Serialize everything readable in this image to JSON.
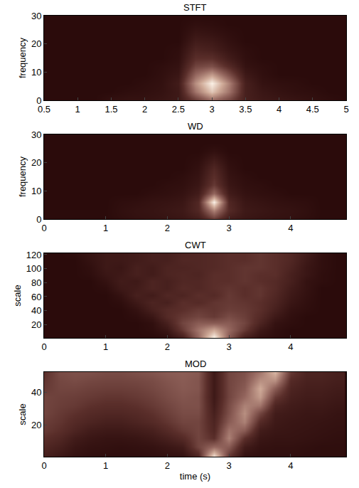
{
  "chart_data": [
    {
      "type": "heatmap",
      "title": "STFT",
      "y_label": "frequency",
      "x": [
        0.5,
        0.75,
        1,
        1.25,
        1.5,
        1.75,
        2,
        2.25,
        2.5,
        2.75,
        3,
        3.25,
        3.5,
        3.75,
        4,
        4.25,
        4.5,
        4.75,
        5
      ],
      "y": [
        0,
        3,
        6,
        9,
        12,
        15,
        18,
        21,
        24,
        27,
        30
      ],
      "z": [
        [
          0,
          0,
          0,
          0,
          0.04,
          0.05,
          0.05,
          0.07,
          0.1,
          0.3,
          0.5,
          0.35,
          0.15,
          0.1,
          0.08,
          0.06,
          0.04,
          0.02,
          0
        ],
        [
          0,
          0,
          0,
          0,
          0,
          0.02,
          0.03,
          0.05,
          0.1,
          0.55,
          0.85,
          0.55,
          0.15,
          0.08,
          0.05,
          0.03,
          0.02,
          0,
          0
        ],
        [
          0,
          0,
          0,
          0,
          0,
          0,
          0.02,
          0.04,
          0.12,
          0.65,
          1,
          0.6,
          0.15,
          0.05,
          0.03,
          0.02,
          0,
          0,
          0
        ],
        [
          0,
          0,
          0,
          0,
          0,
          0,
          0,
          0.03,
          0.08,
          0.5,
          0.7,
          0.4,
          0.1,
          0.03,
          0,
          0,
          0,
          0,
          0
        ],
        [
          0,
          0,
          0,
          0,
          0,
          0,
          0,
          0.02,
          0.05,
          0.35,
          0.4,
          0.22,
          0.05,
          0.02,
          0,
          0,
          0,
          0,
          0
        ],
        [
          0,
          0,
          0,
          0,
          0,
          0,
          0,
          0,
          0.03,
          0.25,
          0.25,
          0.12,
          0.03,
          0,
          0,
          0,
          0,
          0,
          0
        ],
        [
          0,
          0,
          0,
          0,
          0,
          0,
          0,
          0,
          0.02,
          0.18,
          0.15,
          0.07,
          0.02,
          0,
          0,
          0,
          0,
          0,
          0
        ],
        [
          0,
          0,
          0,
          0,
          0,
          0,
          0,
          0,
          0,
          0.12,
          0.1,
          0.04,
          0,
          0,
          0,
          0,
          0,
          0,
          0
        ],
        [
          0,
          0,
          0,
          0,
          0,
          0,
          0,
          0,
          0,
          0.07,
          0.05,
          0.02,
          0,
          0,
          0,
          0,
          0,
          0,
          0
        ],
        [
          0,
          0,
          0,
          0,
          0,
          0,
          0,
          0,
          0,
          0.03,
          0.02,
          0,
          0,
          0,
          0,
          0,
          0,
          0,
          0
        ],
        [
          0,
          0,
          0,
          0,
          0,
          0,
          0,
          0,
          0,
          0,
          0,
          0,
          0,
          0,
          0,
          0,
          0,
          0,
          0
        ]
      ],
      "zlim": [
        0,
        1
      ],
      "xlim": [
        0.5,
        5
      ],
      "xticks": [
        0.5,
        1,
        1.5,
        2,
        2.5,
        3,
        3.5,
        4,
        4.5,
        5
      ],
      "ylim": [
        0,
        30
      ],
      "yticks": [
        0,
        10,
        20,
        30
      ]
    },
    {
      "type": "heatmap",
      "title": "WD",
      "y_label": "frequency",
      "x": [
        0,
        0.25,
        0.5,
        0.75,
        1,
        1.25,
        1.5,
        1.75,
        2,
        2.25,
        2.5,
        2.75,
        3,
        3.25,
        3.5,
        3.75,
        4,
        4.25,
        4.5,
        4.75
      ],
      "y": [
        0,
        3,
        6,
        9,
        12,
        15,
        18,
        21,
        24,
        27,
        30
      ],
      "z": [
        [
          0,
          0,
          0,
          0,
          0,
          0.02,
          0.04,
          0.05,
          0.06,
          0.08,
          0.12,
          0.3,
          0.12,
          0.08,
          0.06,
          0.05,
          0.04,
          0.02,
          0,
          0
        ],
        [
          0,
          0,
          0,
          0,
          0,
          0.03,
          0.05,
          0.06,
          0.08,
          0.1,
          0.2,
          0.6,
          0.22,
          0.1,
          0.08,
          0.06,
          0.05,
          0.03,
          0,
          0
        ],
        [
          0,
          0,
          0,
          0,
          0,
          0.02,
          0.03,
          0.05,
          0.06,
          0.08,
          0.2,
          1,
          0.2,
          0.08,
          0.06,
          0.04,
          0.03,
          0.02,
          0,
          0
        ],
        [
          0,
          0,
          0,
          0,
          0,
          0,
          0,
          0.02,
          0.03,
          0.05,
          0.12,
          0.5,
          0.12,
          0.05,
          0.03,
          0.02,
          0,
          0,
          0,
          0
        ],
        [
          0,
          0,
          0,
          0,
          0,
          0,
          0,
          0,
          0.02,
          0.03,
          0.08,
          0.3,
          0.08,
          0.03,
          0.02,
          0,
          0,
          0,
          0,
          0
        ],
        [
          0,
          0,
          0,
          0,
          0,
          0,
          0,
          0,
          0,
          0.02,
          0.06,
          0.25,
          0.06,
          0.02,
          0,
          0,
          0,
          0,
          0,
          0
        ],
        [
          0,
          0,
          0,
          0,
          0,
          0,
          0,
          0,
          0,
          0,
          0.04,
          0.2,
          0.04,
          0,
          0,
          0,
          0,
          0,
          0,
          0
        ],
        [
          0,
          0,
          0,
          0,
          0,
          0,
          0,
          0,
          0,
          0,
          0.02,
          0.12,
          0.02,
          0,
          0,
          0,
          0,
          0,
          0,
          0
        ],
        [
          0,
          0,
          0,
          0,
          0,
          0,
          0,
          0,
          0,
          0,
          0,
          0.04,
          0,
          0,
          0,
          0,
          0,
          0,
          0,
          0
        ],
        [
          0,
          0,
          0,
          0,
          0,
          0,
          0,
          0,
          0,
          0,
          0,
          0,
          0,
          0,
          0,
          0,
          0,
          0,
          0,
          0
        ],
        [
          0,
          0,
          0,
          0,
          0,
          0,
          0,
          0,
          0,
          0,
          0,
          0,
          0,
          0,
          0,
          0,
          0,
          0,
          0,
          0
        ]
      ],
      "zlim": [
        0,
        1
      ],
      "xlim": [
        0,
        4.9
      ],
      "xticks": [
        0,
        1,
        2,
        3,
        4
      ],
      "ylim": [
        0,
        30
      ],
      "yticks": [
        0,
        10,
        20,
        30
      ]
    },
    {
      "type": "heatmap",
      "title": "CWT",
      "y_label": "scale",
      "x": [
        0,
        0.25,
        0.5,
        0.75,
        1,
        1.25,
        1.5,
        1.75,
        2,
        2.25,
        2.5,
        2.75,
        3,
        3.25,
        3.5,
        3.75,
        4,
        4.25,
        4.5,
        4.75
      ],
      "y": [
        2,
        12,
        22,
        32,
        42,
        52,
        62,
        72,
        82,
        92,
        102,
        112,
        122
      ],
      "z": [
        [
          0,
          0,
          0,
          0,
          0,
          0,
          0,
          0,
          0.02,
          0.15,
          0.5,
          1,
          0.45,
          0.15,
          0.05,
          0.02,
          0,
          0,
          0,
          0
        ],
        [
          0,
          0,
          0,
          0,
          0,
          0,
          0,
          0.02,
          0.08,
          0.3,
          0.55,
          0.75,
          0.5,
          0.3,
          0.1,
          0.03,
          0,
          0,
          0,
          0
        ],
        [
          0,
          0,
          0,
          0,
          0,
          0,
          0,
          0.03,
          0.15,
          0.35,
          0.45,
          0.45,
          0.45,
          0.35,
          0.18,
          0.05,
          0.02,
          0,
          0,
          0
        ],
        [
          0,
          0,
          0,
          0,
          0,
          0,
          0.02,
          0.08,
          0.22,
          0.3,
          0.35,
          0.3,
          0.38,
          0.32,
          0.22,
          0.1,
          0.03,
          0,
          0,
          0
        ],
        [
          0,
          0,
          0,
          0,
          0,
          0,
          0.05,
          0.15,
          0.22,
          0.25,
          0.3,
          0.28,
          0.32,
          0.3,
          0.25,
          0.15,
          0.05,
          0.02,
          0,
          0
        ],
        [
          0,
          0,
          0,
          0,
          0,
          0.02,
          0.1,
          0.18,
          0.15,
          0.25,
          0.22,
          0.28,
          0.3,
          0.28,
          0.25,
          0.18,
          0.08,
          0.03,
          0,
          0
        ],
        [
          0,
          0,
          0,
          0,
          0,
          0.05,
          0.15,
          0.12,
          0.2,
          0.18,
          0.25,
          0.22,
          0.3,
          0.25,
          0.28,
          0.2,
          0.1,
          0.04,
          0,
          0
        ],
        [
          0,
          0,
          0,
          0,
          0.02,
          0.1,
          0.12,
          0.18,
          0.15,
          0.22,
          0.2,
          0.25,
          0.28,
          0.25,
          0.28,
          0.22,
          0.12,
          0.05,
          0,
          0
        ],
        [
          0,
          0,
          0,
          0,
          0.05,
          0.12,
          0.1,
          0.18,
          0.15,
          0.2,
          0.2,
          0.25,
          0.25,
          0.28,
          0.25,
          0.22,
          0.15,
          0.05,
          0.02,
          0
        ],
        [
          0,
          0,
          0,
          0.02,
          0.08,
          0.1,
          0.15,
          0.12,
          0.18,
          0.2,
          0.18,
          0.25,
          0.25,
          0.28,
          0.25,
          0.25,
          0.15,
          0.08,
          0.02,
          0
        ],
        [
          0,
          0,
          0,
          0.03,
          0.1,
          0.08,
          0.15,
          0.12,
          0.18,
          0.18,
          0.2,
          0.22,
          0.25,
          0.28,
          0.28,
          0.25,
          0.18,
          0.08,
          0.03,
          0
        ],
        [
          0,
          0,
          0,
          0.05,
          0.1,
          0.1,
          0.12,
          0.15,
          0.15,
          0.2,
          0.2,
          0.22,
          0.25,
          0.25,
          0.28,
          0.25,
          0.2,
          0.1,
          0.03,
          0
        ],
        [
          0,
          0,
          0.02,
          0.06,
          0.1,
          0.1,
          0.12,
          0.15,
          0.15,
          0.18,
          0.2,
          0.22,
          0.25,
          0.25,
          0.28,
          0.25,
          0.2,
          0.12,
          0.04,
          0
        ]
      ],
      "zlim": [
        0,
        1
      ],
      "xlim": [
        0,
        4.9
      ],
      "xticks": [
        0,
        1,
        2,
        3,
        4
      ],
      "ylim": [
        1,
        122
      ],
      "yticks": [
        20,
        40,
        60,
        80,
        100,
        120
      ]
    },
    {
      "type": "heatmap",
      "title": "MOD",
      "y_label": "scale",
      "x_label": "time (s)",
      "x": [
        0,
        0.25,
        0.5,
        0.75,
        1,
        1.25,
        1.5,
        1.75,
        2,
        2.25,
        2.5,
        2.75,
        3,
        3.25,
        3.5,
        3.75,
        4,
        4.25,
        4.5,
        4.75
      ],
      "y": [
        2,
        7,
        12,
        17,
        22,
        27,
        32,
        37,
        42,
        47,
        52
      ],
      "z": [
        [
          0.15,
          0.1,
          0.05,
          0.03,
          0.02,
          0.02,
          0.02,
          0.03,
          0.04,
          0.05,
          0.2,
          0.9,
          0.3,
          0.05,
          0.03,
          0.03,
          0.03,
          0.02,
          0.02,
          0.02
        ],
        [
          0.2,
          0.15,
          0.08,
          0.05,
          0.04,
          0.03,
          0.04,
          0.05,
          0.08,
          0.12,
          0.35,
          0.5,
          0.45,
          0.12,
          0.05,
          0.04,
          0.04,
          0.03,
          0.02,
          0.02
        ],
        [
          0.25,
          0.2,
          0.12,
          0.08,
          0.06,
          0.06,
          0.07,
          0.1,
          0.15,
          0.22,
          0.35,
          0.25,
          0.6,
          0.25,
          0.08,
          0.06,
          0.06,
          0.05,
          0.04,
          0.03
        ],
        [
          0.3,
          0.25,
          0.18,
          0.12,
          0.1,
          0.1,
          0.12,
          0.15,
          0.22,
          0.3,
          0.35,
          0.2,
          0.55,
          0.45,
          0.12,
          0.08,
          0.07,
          0.06,
          0.05,
          0.04
        ],
        [
          0.32,
          0.28,
          0.22,
          0.18,
          0.15,
          0.15,
          0.18,
          0.22,
          0.28,
          0.35,
          0.35,
          0.18,
          0.45,
          0.6,
          0.22,
          0.1,
          0.08,
          0.07,
          0.06,
          0.05
        ],
        [
          0.35,
          0.3,
          0.26,
          0.22,
          0.2,
          0.2,
          0.22,
          0.26,
          0.32,
          0.38,
          0.38,
          0.15,
          0.4,
          0.65,
          0.35,
          0.12,
          0.1,
          0.08,
          0.08,
          0.06
        ],
        [
          0.35,
          0.32,
          0.3,
          0.26,
          0.24,
          0.24,
          0.26,
          0.3,
          0.35,
          0.4,
          0.4,
          0.12,
          0.38,
          0.6,
          0.55,
          0.18,
          0.12,
          0.1,
          0.1,
          0.08
        ],
        [
          0.35,
          0.33,
          0.32,
          0.3,
          0.28,
          0.28,
          0.3,
          0.33,
          0.38,
          0.42,
          0.4,
          0.1,
          0.35,
          0.5,
          0.7,
          0.3,
          0.15,
          0.12,
          0.12,
          0.1
        ],
        [
          0.3,
          0.35,
          0.35,
          0.33,
          0.32,
          0.32,
          0.33,
          0.36,
          0.4,
          0.44,
          0.42,
          0.1,
          0.35,
          0.45,
          0.75,
          0.45,
          0.18,
          0.14,
          0.14,
          0.12
        ],
        [
          0.28,
          0.36,
          0.38,
          0.36,
          0.35,
          0.35,
          0.36,
          0.38,
          0.42,
          0.45,
          0.42,
          0.1,
          0.35,
          0.42,
          0.65,
          0.65,
          0.22,
          0.16,
          0.16,
          0.14
        ],
        [
          0.25,
          0.38,
          0.4,
          0.4,
          0.38,
          0.38,
          0.4,
          0.42,
          0.45,
          0.46,
          0.44,
          0.1,
          0.35,
          0.4,
          0.55,
          0.8,
          0.3,
          0.18,
          0.18,
          0.15
        ]
      ],
      "zlim": [
        0,
        1
      ],
      "xlim": [
        0,
        4.9
      ],
      "xticks": [
        0,
        1,
        2,
        3,
        4
      ],
      "ylim": [
        1,
        52
      ],
      "yticks": [
        20,
        40
      ]
    }
  ]
}
